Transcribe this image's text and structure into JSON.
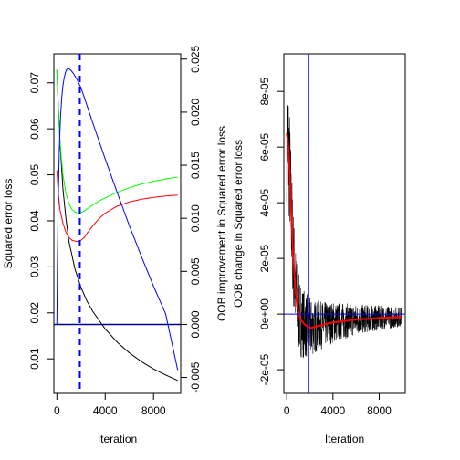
{
  "chart_data": [
    {
      "type": "line",
      "xlabel": "Iteration",
      "ylabel": "Squared error loss",
      "ylabel_right": "OOB improvement in Squared error loss",
      "xlim": [
        -250,
        10250
      ],
      "ylim": [
        0.0025,
        0.0763
      ],
      "y2lim": [
        -0.0065,
        0.0255
      ],
      "x_ticks": [
        0,
        4000,
        8000
      ],
      "x_tick_labels": [
        "0",
        "4000",
        "8000"
      ],
      "y_ticks": [
        0.01,
        0.02,
        0.03,
        0.04,
        0.05,
        0.06,
        0.07
      ],
      "y_tick_labels": [
        "0.01",
        "0.02",
        "0.03",
        "0.04",
        "0.05",
        "0.06",
        "0.07"
      ],
      "y2_ticks": [
        -0.005,
        0,
        0.005,
        0.01,
        0.015,
        0.02,
        0.025
      ],
      "y2_tick_labels": [
        "-0.005",
        "0.000",
        "0.005",
        "0.010",
        "0.015",
        "0.020",
        "0.025"
      ],
      "vline": {
        "x": 1900,
        "color": "#0000ff",
        "style": "dashed"
      },
      "hline": {
        "y2": 0,
        "color": "#00008b"
      },
      "series": [
        {
          "color": "#000000",
          "axis": "left",
          "x": [
            0,
            100,
            250,
            500,
            750,
            1000,
            1500,
            2000,
            2500,
            3000,
            4000,
            5000,
            6000,
            7000,
            8000,
            9000,
            10000
          ],
          "values": [
            0.0728,
            0.066,
            0.0575,
            0.047,
            0.0405,
            0.0355,
            0.0295,
            0.0255,
            0.0225,
            0.0202,
            0.0165,
            0.0136,
            0.0113,
            0.0094,
            0.0078,
            0.0065,
            0.0053
          ]
        },
        {
          "color": "#ff0000",
          "axis": "left",
          "x": [
            0,
            100,
            250,
            500,
            750,
            1000,
            1250,
            1500,
            1750,
            2000,
            2250,
            2500,
            3000,
            3500,
            4000,
            5000,
            6000,
            7000,
            8000,
            9000,
            10000
          ],
          "values": [
            0.051,
            0.0465,
            0.0425,
            0.0395,
            0.0375,
            0.0364,
            0.0358,
            0.0356,
            0.0355,
            0.0358,
            0.0363,
            0.0373,
            0.039,
            0.0405,
            0.0417,
            0.0432,
            0.0441,
            0.0447,
            0.0451,
            0.0454,
            0.0456
          ]
        },
        {
          "color": "#00ff00",
          "axis": "left",
          "x": [
            0,
            100,
            250,
            500,
            750,
            1000,
            1250,
            1500,
            1750,
            2000,
            2250,
            2500,
            3000,
            3500,
            4000,
            5000,
            6000,
            7000,
            8000,
            9000,
            10000
          ],
          "values": [
            0.0728,
            0.066,
            0.0575,
            0.05,
            0.046,
            0.0437,
            0.0425,
            0.0419,
            0.0417,
            0.0418,
            0.0421,
            0.0426,
            0.0435,
            0.0443,
            0.045,
            0.0462,
            0.0472,
            0.048,
            0.0486,
            0.0491,
            0.0495
          ]
        },
        {
          "color": "#0000ff",
          "axis": "right",
          "x": [
            0,
            50,
            100,
            200,
            300,
            400,
            500,
            600,
            700,
            800,
            900,
            1000,
            1100,
            1200,
            1400,
            1700,
            2000,
            2500,
            3000,
            4000,
            5000,
            6000,
            7000,
            8000,
            9000,
            10000
          ],
          "values": [
            0.0,
            0.0065,
            0.011,
            0.0165,
            0.0195,
            0.0213,
            0.0225,
            0.0232,
            0.0237,
            0.024,
            0.0241,
            0.0241,
            0.024,
            0.0239,
            0.0236,
            0.023,
            0.0223,
            0.0206,
            0.0189,
            0.0156,
            0.0124,
            0.0093,
            0.0064,
            0.0036,
            0.001,
            -0.0043
          ]
        }
      ]
    },
    {
      "type": "line",
      "xlabel": "Iteration",
      "ylabel": "OOB change in Squared error loss",
      "xlim": [
        -250,
        10250
      ],
      "ylim": [
        -2.85e-05,
        9.35e-05
      ],
      "x_ticks": [
        0,
        4000,
        8000
      ],
      "x_tick_labels": [
        "0",
        "4000",
        "8000"
      ],
      "y_ticks": [
        -2e-05,
        0,
        2e-05,
        4e-05,
        6e-05,
        8e-05
      ],
      "y_tick_labels": [
        "-2e-05",
        "0e+00",
        "2e-05",
        "4e-05",
        "6e-05",
        "8e-05"
      ],
      "vline": {
        "x": 1900,
        "color": "#0000ff",
        "style": "solid"
      },
      "hline": {
        "y": 0,
        "color": "#0000ff"
      },
      "series": [
        {
          "color": "#000000",
          "style": "noisy",
          "x": [
            0,
            100,
            200,
            300,
            400,
            500,
            600,
            700,
            800,
            900,
            1000,
            1200,
            1500,
            1800,
            2100,
            2500,
            3000,
            3500,
            4000,
            5000,
            6000,
            7000,
            8000,
            9000,
            10000
          ],
          "values": [
            6.5e-05,
            6.2e-05,
            5.6e-05,
            4.6e-05,
            3.5e-05,
            2.6e-05,
            1.8e-05,
            1.2e-05,
            7e-06,
            3e-06,
            1e-06,
            -2e-06,
            -3.5e-06,
            -4.5e-06,
            -5e-06,
            -4.5e-06,
            -4e-06,
            -3.5e-06,
            -3e-06,
            -2.5e-06,
            -2e-06,
            -1.7e-06,
            -1.4e-06,
            -1.2e-06,
            -1e-06
          ],
          "spread": [
            2.5e-05,
            2.5e-05,
            2.3e-05,
            2.1e-05,
            2e-05,
            1.9e-05,
            1.8e-05,
            1.7e-05,
            1.6e-05,
            1.5e-05,
            1.45e-05,
            1.35e-05,
            1.25e-05,
            1.15e-05,
            1.05e-05,
            9.5e-06,
            8.5e-06,
            8e-06,
            7.5e-06,
            6.5e-06,
            5.5e-06,
            5e-06,
            4.5e-06,
            4e-06,
            3.5e-06
          ]
        },
        {
          "color": "#ff0000",
          "style": "smooth",
          "x": [
            0,
            100,
            200,
            300,
            400,
            500,
            600,
            700,
            800,
            900,
            1000,
            1200,
            1500,
            1800,
            2100,
            2500,
            3000,
            3500,
            4000,
            5000,
            6000,
            7000,
            8000,
            9000,
            10000
          ],
          "values": [
            6.5e-05,
            6.2e-05,
            5.6e-05,
            4.6e-05,
            3.5e-05,
            2.6e-05,
            1.8e-05,
            1.2e-05,
            7e-06,
            3e-06,
            1e-06,
            -2e-06,
            -3.5e-06,
            -4.5e-06,
            -5e-06,
            -4.5e-06,
            -4e-06,
            -3.5e-06,
            -3e-06,
            -2.5e-06,
            -2e-06,
            -1.7e-06,
            -1.4e-06,
            -1.2e-06,
            -1e-06
          ]
        }
      ]
    }
  ]
}
